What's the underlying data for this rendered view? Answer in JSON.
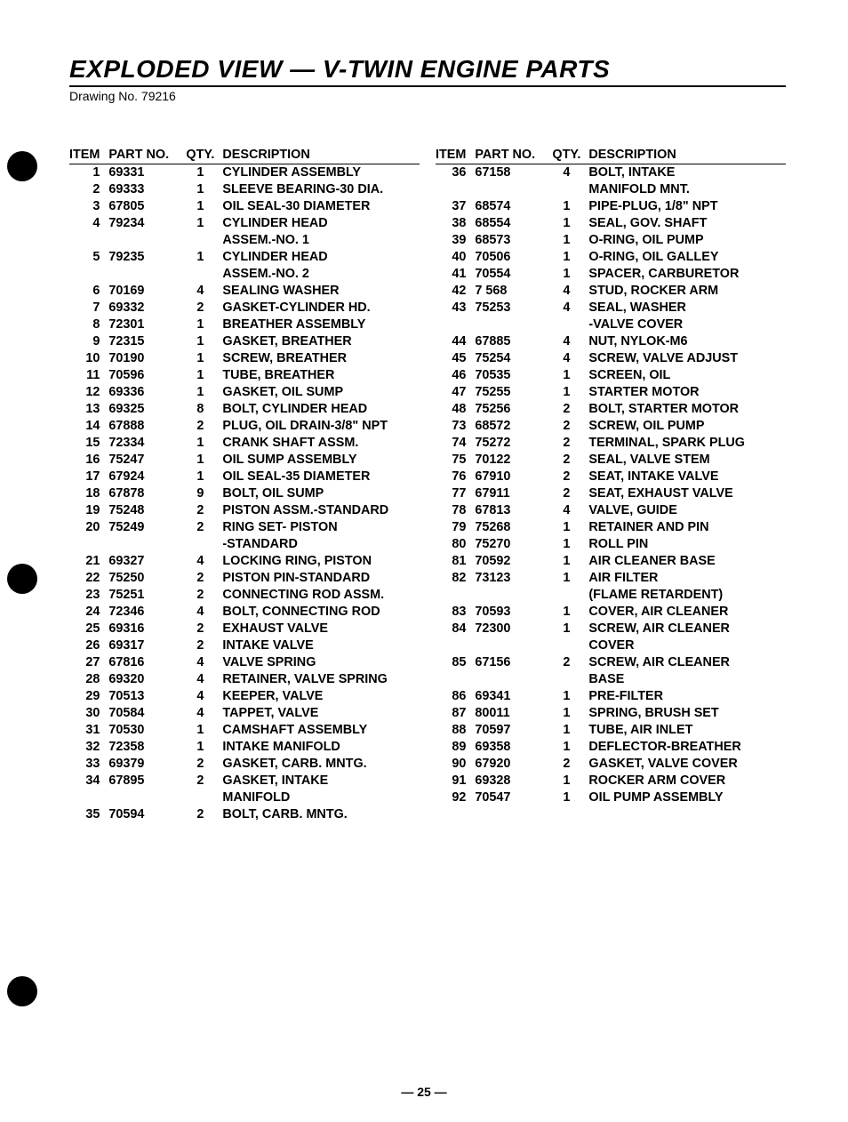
{
  "title": "EXPLODED VIEW — V-TWIN ENGINE PARTS",
  "drawing_label": "Drawing No. 79216",
  "page_number": "— 25 —",
  "headers": {
    "item": "ITEM",
    "partno": "PART NO.",
    "qty": "QTY.",
    "desc": "DESCRIPTION"
  },
  "left_rows": [
    {
      "item": "1",
      "partno": "69331",
      "qty": "1",
      "desc": "CYLINDER ASSEMBLY"
    },
    {
      "item": "2",
      "partno": "69333",
      "qty": "1",
      "desc": "SLEEVE BEARING-30 DIA."
    },
    {
      "item": "3",
      "partno": "67805",
      "qty": "1",
      "desc": "OIL SEAL-30 DIAMETER"
    },
    {
      "item": "4",
      "partno": "79234",
      "qty": "1",
      "desc": "CYLINDER HEAD"
    },
    {
      "item": "",
      "partno": "",
      "qty": "",
      "desc": "ASSEM.-NO. 1"
    },
    {
      "item": "5",
      "partno": "79235",
      "qty": "1",
      "desc": "CYLINDER HEAD"
    },
    {
      "item": "",
      "partno": "",
      "qty": "",
      "desc": "ASSEM.-NO. 2"
    },
    {
      "item": "6",
      "partno": "70169",
      "qty": "4",
      "desc": "SEALING WASHER"
    },
    {
      "item": "7",
      "partno": "69332",
      "qty": "2",
      "desc": "GASKET-CYLINDER HD."
    },
    {
      "item": "8",
      "partno": "72301",
      "qty": "1",
      "desc": "BREATHER ASSEMBLY"
    },
    {
      "item": "9",
      "partno": "72315",
      "qty": "1",
      "desc": "GASKET, BREATHER"
    },
    {
      "item": "10",
      "partno": "70190",
      "qty": "1",
      "desc": "SCREW, BREATHER"
    },
    {
      "item": "11",
      "partno": "70596",
      "qty": "1",
      "desc": "TUBE, BREATHER"
    },
    {
      "item": "12",
      "partno": "69336",
      "qty": "1",
      "desc": "GASKET, OIL SUMP"
    },
    {
      "item": "13",
      "partno": "69325",
      "qty": "8",
      "desc": "BOLT, CYLINDER HEAD"
    },
    {
      "item": "14",
      "partno": "67888",
      "qty": "2",
      "desc": "PLUG, OIL DRAIN-3/8\" NPT"
    },
    {
      "item": "15",
      "partno": "72334",
      "qty": "1",
      "desc": "CRANK SHAFT ASSM."
    },
    {
      "item": "16",
      "partno": "75247",
      "qty": "1",
      "desc": "OIL SUMP ASSEMBLY"
    },
    {
      "item": "17",
      "partno": "67924",
      "qty": "1",
      "desc": "OIL SEAL-35 DIAMETER"
    },
    {
      "item": "18",
      "partno": "67878",
      "qty": "9",
      "desc": "BOLT, OIL SUMP"
    },
    {
      "item": "19",
      "partno": "75248",
      "qty": "2",
      "desc": "PISTON ASSM.-STANDARD"
    },
    {
      "item": "20",
      "partno": "75249",
      "qty": "2",
      "desc": "RING SET- PISTON"
    },
    {
      "item": "",
      "partno": "",
      "qty": "",
      "desc": "-STANDARD"
    },
    {
      "item": "21",
      "partno": "69327",
      "qty": "4",
      "desc": "LOCKING RING, PISTON"
    },
    {
      "item": "22",
      "partno": "75250",
      "qty": "2",
      "desc": "PISTON PIN-STANDARD"
    },
    {
      "item": "23",
      "partno": "75251",
      "qty": "2",
      "desc": "CONNECTING ROD ASSM."
    },
    {
      "item": "24",
      "partno": "72346",
      "qty": "4",
      "desc": "BOLT, CONNECTING ROD"
    },
    {
      "item": "25",
      "partno": "69316",
      "qty": "2",
      "desc": "EXHAUST VALVE"
    },
    {
      "item": "26",
      "partno": "69317",
      "qty": "2",
      "desc": "INTAKE VALVE"
    },
    {
      "item": "27",
      "partno": "67816",
      "qty": "4",
      "desc": "VALVE SPRING"
    },
    {
      "item": "28",
      "partno": "69320",
      "qty": "4",
      "desc": "RETAINER, VALVE SPRING"
    },
    {
      "item": "29",
      "partno": "70513",
      "qty": "4",
      "desc": "KEEPER, VALVE"
    },
    {
      "item": "30",
      "partno": "70584",
      "qty": "4",
      "desc": "TAPPET, VALVE"
    },
    {
      "item": "31",
      "partno": "70530",
      "qty": "1",
      "desc": "CAMSHAFT ASSEMBLY"
    },
    {
      "item": "32",
      "partno": "72358",
      "qty": "1",
      "desc": "INTAKE MANIFOLD"
    },
    {
      "item": "33",
      "partno": "69379",
      "qty": "2",
      "desc": "GASKET, CARB. MNTG."
    },
    {
      "item": "34",
      "partno": "67895",
      "qty": "2",
      "desc": "GASKET, INTAKE"
    },
    {
      "item": "",
      "partno": "",
      "qty": "",
      "desc": "MANIFOLD"
    },
    {
      "item": "35",
      "partno": "70594",
      "qty": "2",
      "desc": "BOLT, CARB. MNTG."
    }
  ],
  "right_rows": [
    {
      "item": "36",
      "partno": "67158",
      "qty": "4",
      "desc": "BOLT, INTAKE"
    },
    {
      "item": "",
      "partno": "",
      "qty": "",
      "desc": "MANIFOLD MNT."
    },
    {
      "item": "37",
      "partno": "68574",
      "qty": "1",
      "desc": "PIPE-PLUG, 1/8\" NPT"
    },
    {
      "item": "38",
      "partno": "68554",
      "qty": "1",
      "desc": "SEAL, GOV. SHAFT"
    },
    {
      "item": "39",
      "partno": "68573",
      "qty": "1",
      "desc": "O-RING, OIL PUMP"
    },
    {
      "item": "40",
      "partno": "70506",
      "qty": "1",
      "desc": "O-RING, OIL GALLEY"
    },
    {
      "item": "41",
      "partno": "70554",
      "qty": "1",
      "desc": "SPACER, CARBURETOR"
    },
    {
      "item": "42",
      "partno": "7  568",
      "qty": "4",
      "desc": "STUD, ROCKER ARM"
    },
    {
      "item": "43",
      "partno": "75253",
      "qty": "4",
      "desc": "SEAL, WASHER"
    },
    {
      "item": "",
      "partno": "",
      "qty": "",
      "desc": "-VALVE COVER"
    },
    {
      "item": "44",
      "partno": "67885",
      "qty": "4",
      "desc": "NUT, NYLOK-M6"
    },
    {
      "item": "45",
      "partno": "75254",
      "qty": "4",
      "desc": "SCREW, VALVE ADJUST"
    },
    {
      "item": "46",
      "partno": "70535",
      "qty": "1",
      "desc": "SCREEN, OIL"
    },
    {
      "item": "47",
      "partno": "75255",
      "qty": "1",
      "desc": "STARTER MOTOR"
    },
    {
      "item": "48",
      "partno": "75256",
      "qty": "2",
      "desc": "BOLT, STARTER MOTOR"
    },
    {
      "item": "73",
      "partno": "68572",
      "qty": "2",
      "desc": "SCREW, OIL PUMP"
    },
    {
      "item": "74",
      "partno": "75272",
      "qty": "2",
      "desc": "TERMINAL, SPARK PLUG"
    },
    {
      "item": "75",
      "partno": "70122",
      "qty": "2",
      "desc": "SEAL, VALVE STEM"
    },
    {
      "item": "76",
      "partno": "67910",
      "qty": "2",
      "desc": "SEAT, INTAKE VALVE"
    },
    {
      "item": "77",
      "partno": "67911",
      "qty": "2",
      "desc": "SEAT, EXHAUST VALVE"
    },
    {
      "item": "78",
      "partno": "67813",
      "qty": "4",
      "desc": "VALVE, GUIDE"
    },
    {
      "item": "79",
      "partno": "75268",
      "qty": "1",
      "desc": "RETAINER AND PIN"
    },
    {
      "item": "80",
      "partno": "75270",
      "qty": "1",
      "desc": "ROLL PIN"
    },
    {
      "item": "81",
      "partno": "70592",
      "qty": "1",
      "desc": "AIR CLEANER BASE"
    },
    {
      "item": "82",
      "partno": "73123",
      "qty": "1",
      "desc": "AIR FILTER"
    },
    {
      "item": "",
      "partno": "",
      "qty": "",
      "desc": "(FLAME RETARDENT)"
    },
    {
      "item": "83",
      "partno": "70593",
      "qty": "1",
      "desc": "COVER, AIR CLEANER"
    },
    {
      "item": "84",
      "partno": "72300",
      "qty": "1",
      "desc": "SCREW, AIR CLEANER"
    },
    {
      "item": "",
      "partno": "",
      "qty": "",
      "desc": "COVER"
    },
    {
      "item": "85",
      "partno": "67156",
      "qty": "2",
      "desc": "SCREW, AIR CLEANER"
    },
    {
      "item": "",
      "partno": "",
      "qty": "",
      "desc": "BASE"
    },
    {
      "item": "86",
      "partno": "69341",
      "qty": "1",
      "desc": "PRE-FILTER"
    },
    {
      "item": "87",
      "partno": "80011",
      "qty": "1",
      "desc": "SPRING, BRUSH SET"
    },
    {
      "item": "88",
      "partno": "70597",
      "qty": "1",
      "desc": "TUBE, AIR INLET"
    },
    {
      "item": "89",
      "partno": "69358",
      "qty": "1",
      "desc": "DEFLECTOR-BREATHER"
    },
    {
      "item": "90",
      "partno": "67920",
      "qty": "2",
      "desc": "GASKET, VALVE COVER"
    },
    {
      "item": "91",
      "partno": "69328",
      "qty": "1",
      "desc": "ROCKER ARM COVER"
    },
    {
      "item": "92",
      "partno": "70547",
      "qty": "1",
      "desc": "OIL PUMP ASSEMBLY"
    }
  ]
}
